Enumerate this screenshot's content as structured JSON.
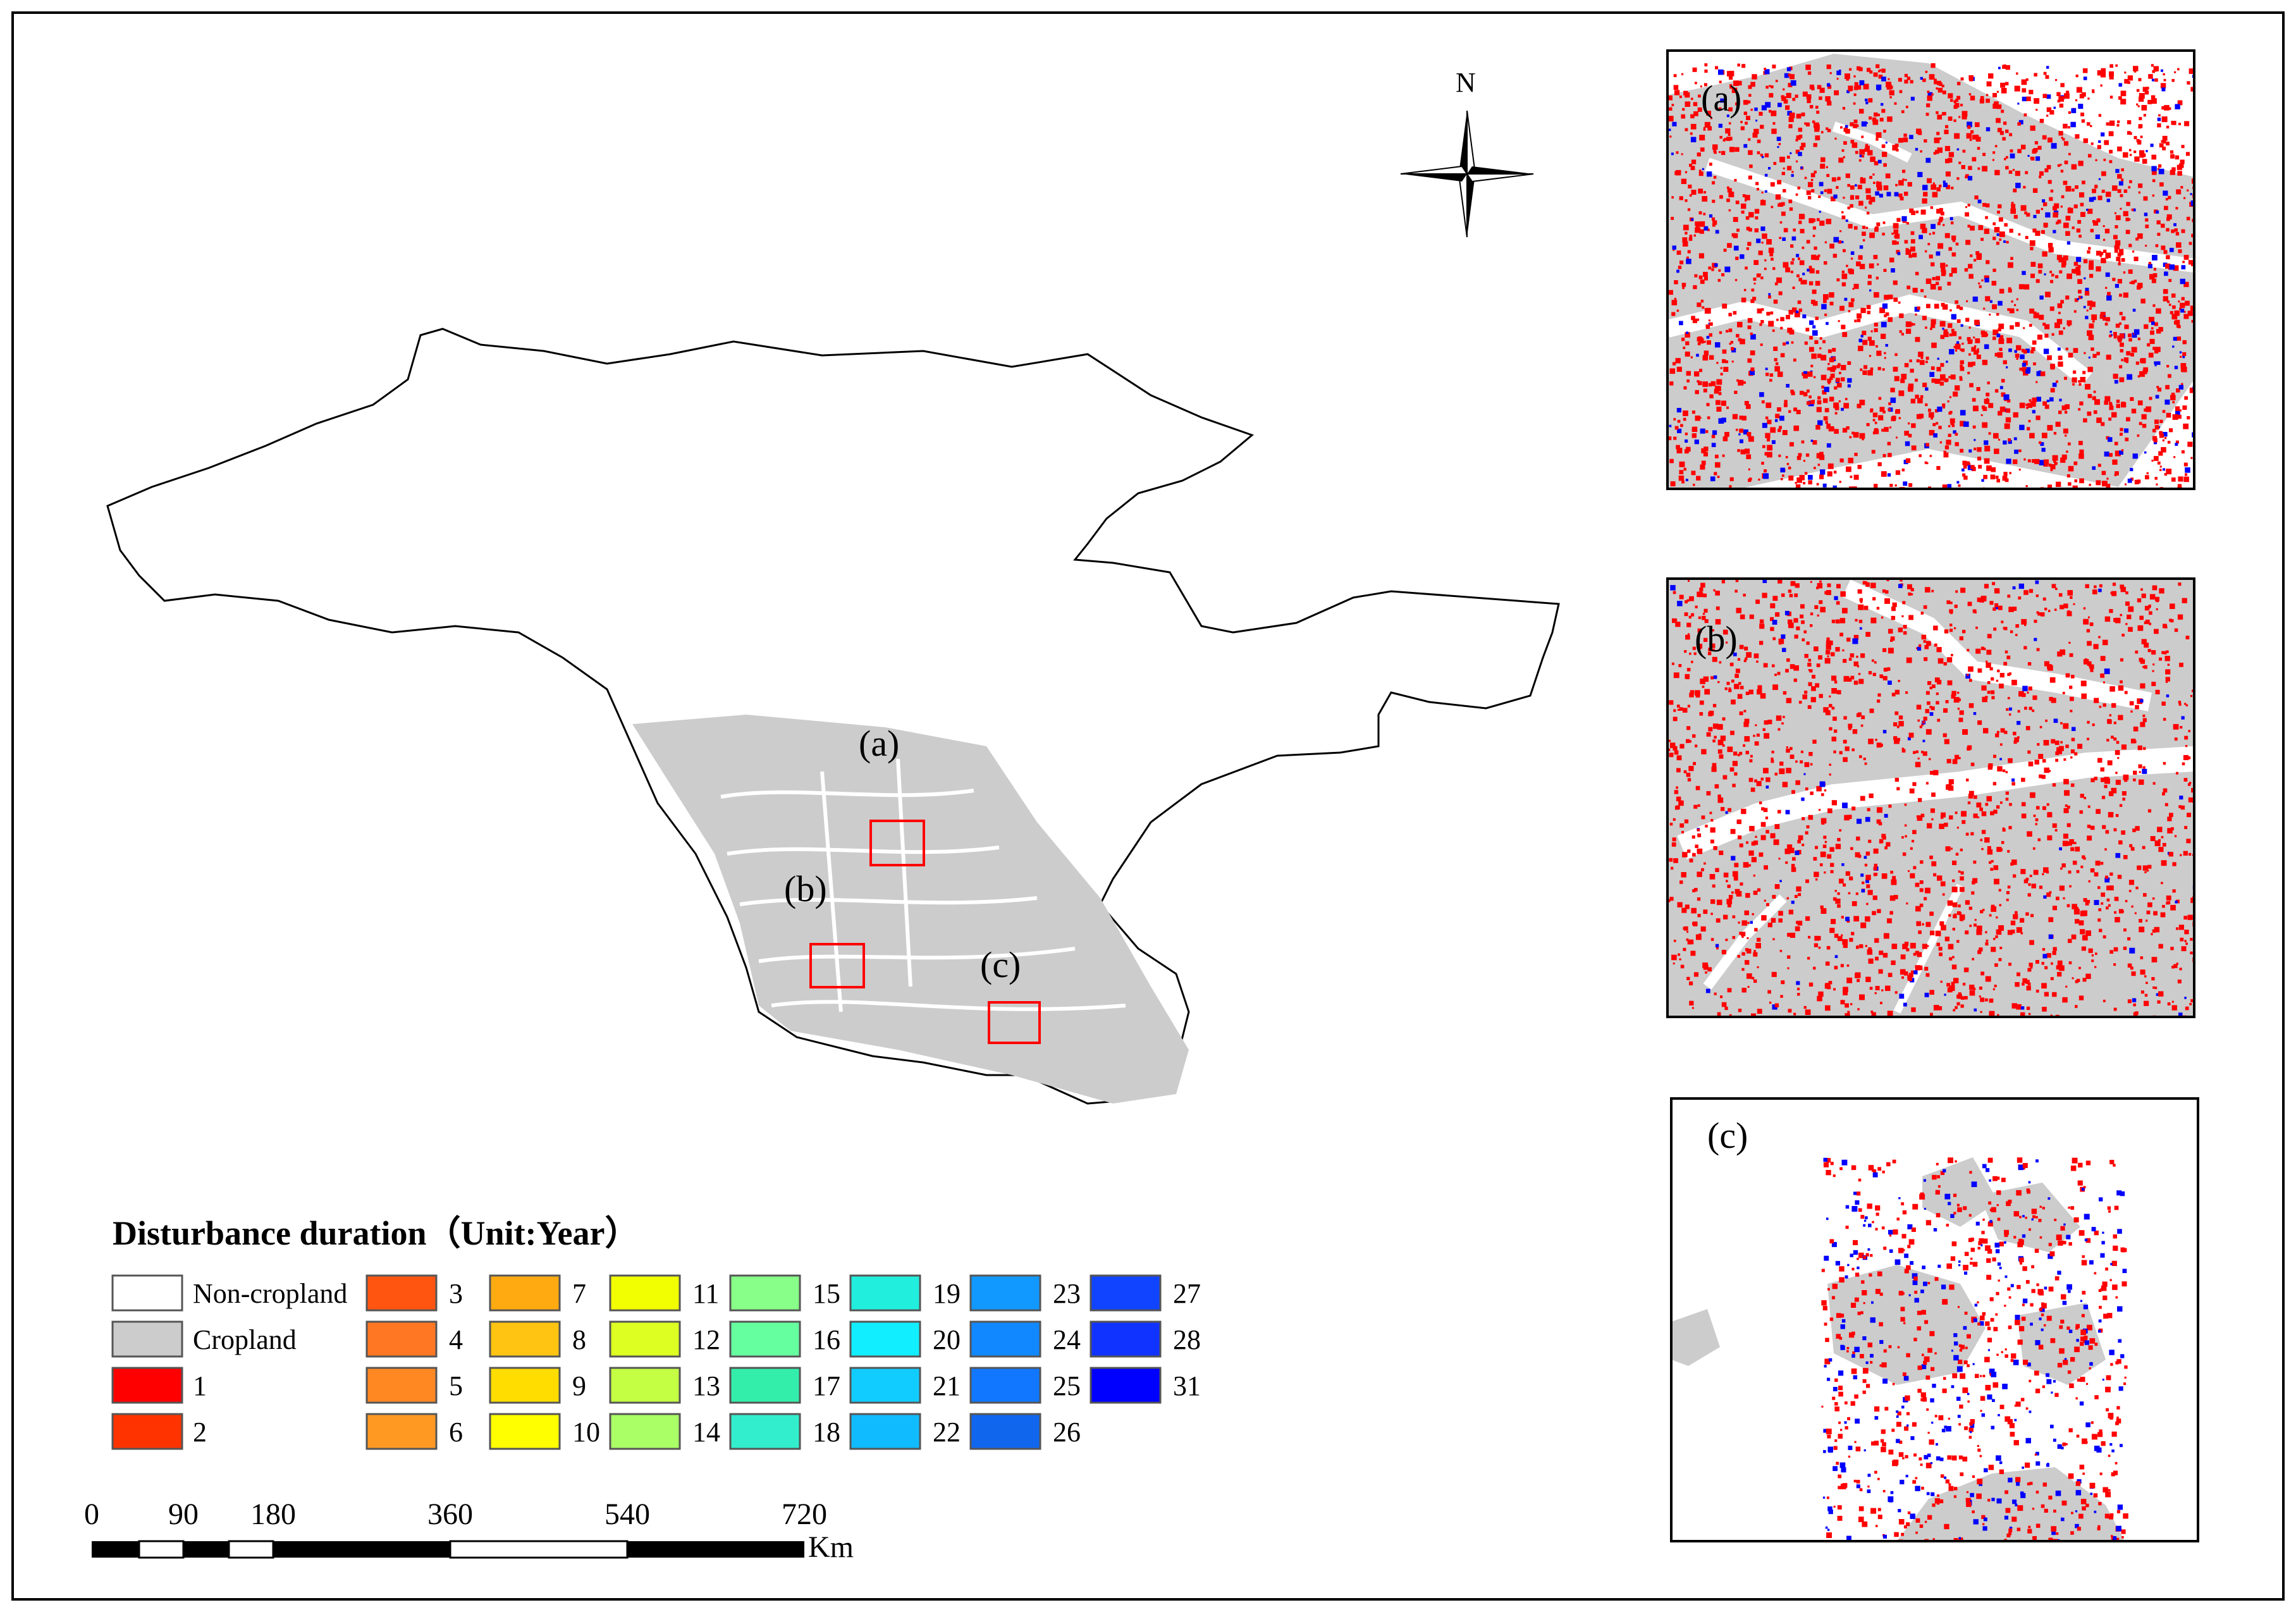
{
  "legend": {
    "title": "Disturbance duration（Unit:Year）",
    "items": [
      {
        "label": "Non-cropland",
        "color": "#ffffff"
      },
      {
        "label": "Cropland",
        "color": "#cccccc"
      },
      {
        "label": "1",
        "color": "#ff0000"
      },
      {
        "label": "2",
        "color": "#ff3300"
      },
      {
        "label": "3",
        "color": "#ff5511"
      },
      {
        "label": "4",
        "color": "#ff7722"
      },
      {
        "label": "5",
        "color": "#ff8822"
      },
      {
        "label": "6",
        "color": "#ff9922"
      },
      {
        "label": "7",
        "color": "#ffaa11"
      },
      {
        "label": "8",
        "color": "#ffc411"
      },
      {
        "label": "9",
        "color": "#ffdd00"
      },
      {
        "label": "10",
        "color": "#ffff00"
      },
      {
        "label": "11",
        "color": "#f2ff00"
      },
      {
        "label": "12",
        "color": "#ddff22"
      },
      {
        "label": "13",
        "color": "#c4ff44"
      },
      {
        "label": "14",
        "color": "#aaff66"
      },
      {
        "label": "15",
        "color": "#88ff88"
      },
      {
        "label": "16",
        "color": "#66ffa0"
      },
      {
        "label": "17",
        "color": "#33eeaa"
      },
      {
        "label": "18",
        "color": "#33eecc"
      },
      {
        "label": "19",
        "color": "#22eedd"
      },
      {
        "label": "20",
        "color": "#11eeff"
      },
      {
        "label": "21",
        "color": "#11ccff"
      },
      {
        "label": "22",
        "color": "#11bbff"
      },
      {
        "label": "23",
        "color": "#1199ff"
      },
      {
        "label": "24",
        "color": "#1188ff"
      },
      {
        "label": "25",
        "color": "#1177ff"
      },
      {
        "label": "26",
        "color": "#1166ee"
      },
      {
        "label": "27",
        "color": "#1144ff"
      },
      {
        "label": "28",
        "color": "#1133ff"
      },
      {
        "label": "31",
        "color": "#0000ff"
      }
    ]
  },
  "north_arrow": {
    "label": "N"
  },
  "scale_bar": {
    "ticks": [
      "0",
      "90",
      "180",
      "360",
      "540",
      "720"
    ],
    "unit": "Km"
  },
  "main_map": {
    "labels": [
      "(a)",
      "(b)",
      "(c)"
    ],
    "box_color": "#ff0000"
  },
  "insets": [
    {
      "label": "(a)"
    },
    {
      "label": "(b)"
    },
    {
      "label": "(c)"
    }
  ]
}
